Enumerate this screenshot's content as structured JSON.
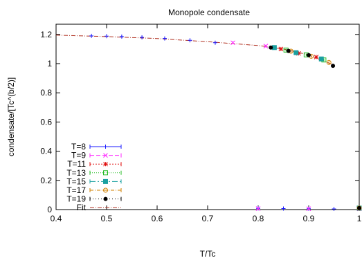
{
  "chart_data": {
    "type": "scatter",
    "title": "Monopole condensate",
    "xlabel": "T/Tc",
    "ylabel": "condensate/[Tc^(b/2)]",
    "xlim": [
      0.4,
      1.0
    ],
    "ylim": [
      0,
      1.27
    ],
    "x_ticks": [
      "0.4",
      "0.5",
      "0.6",
      "0.7",
      "0.8",
      "0.9",
      "1"
    ],
    "y_ticks": [
      "0",
      "0.2",
      "0.4",
      "0.6",
      "0.8",
      "1",
      "1.2"
    ],
    "x_tick_values": [
      0.4,
      0.5,
      0.6,
      0.7,
      0.8,
      0.9,
      1.0
    ],
    "y_tick_values": [
      0,
      0.2,
      0.4,
      0.6,
      0.8,
      1.0,
      1.2
    ],
    "grid": false,
    "legend_position": "bottom-left",
    "series": [
      {
        "name": "T=8",
        "color": "#1a1aff",
        "marker": "plus",
        "dash": "solid",
        "points": [
          [
            0.47,
            1.19
          ],
          [
            0.5,
            1.188
          ],
          [
            0.53,
            1.185
          ],
          [
            0.57,
            1.18
          ],
          [
            0.615,
            1.172
          ],
          [
            0.665,
            1.16
          ],
          [
            0.715,
            1.143
          ],
          [
            0.8,
            0.008
          ],
          [
            0.85,
            0.007
          ],
          [
            0.9,
            0.006
          ],
          [
            0.95,
            0.005
          ],
          [
            1.0,
            0.005
          ]
        ]
      },
      {
        "name": "T=9",
        "color": "#ff22ff",
        "marker": "cross",
        "dash": "6,3",
        "points": [
          [
            0.75,
            1.143
          ],
          [
            0.815,
            1.12
          ],
          [
            0.8,
            0.007
          ],
          [
            0.9,
            0.006
          ],
          [
            1.0,
            0.005
          ]
        ]
      },
      {
        "name": "T=11",
        "color": "#e01010",
        "marker": "star",
        "dash": "2,2",
        "points": [
          [
            0.845,
            1.1
          ],
          [
            0.88,
            1.07
          ],
          [
            0.915,
            1.045
          ],
          [
            1.0,
            0.007
          ]
        ]
      },
      {
        "name": "T=13",
        "color": "#22bb22",
        "marker": "open-square",
        "dash": "1,2",
        "points": [
          [
            0.855,
            1.093
          ],
          [
            0.895,
            1.06
          ],
          [
            0.93,
            1.025
          ],
          [
            1.0,
            0.01
          ]
        ]
      },
      {
        "name": "T=15",
        "color": "#1aa0a0",
        "marker": "filled-square",
        "dash": "8,3,2,3",
        "points": [
          [
            0.832,
            1.11
          ],
          [
            0.875,
            1.075
          ],
          [
            0.925,
            1.032
          ],
          [
            1.0,
            0.01
          ]
        ]
      },
      {
        "name": "T=17",
        "color": "#d08000",
        "marker": "open-circle",
        "dash": "5,2,1,2",
        "points": [
          [
            0.865,
            1.085
          ],
          [
            0.905,
            1.05
          ],
          [
            0.94,
            1.008
          ],
          [
            1.0,
            0.01
          ]
        ]
      },
      {
        "name": "T=19",
        "color": "#000000",
        "marker": "filled-circle",
        "dash": "1,3",
        "points": [
          [
            0.825,
            1.11
          ],
          [
            0.86,
            1.087
          ],
          [
            0.9,
            1.058
          ],
          [
            0.948,
            0.985
          ],
          [
            1.0,
            0.01
          ]
        ]
      }
    ],
    "fit": {
      "name": "Fit",
      "color": "#b03020",
      "dash": "6,2,1,2",
      "points": [
        [
          0.4,
          1.195
        ],
        [
          0.5,
          1.185
        ],
        [
          0.6,
          1.172
        ],
        [
          0.7,
          1.15
        ],
        [
          0.8,
          1.124
        ],
        [
          0.85,
          1.1
        ],
        [
          0.9,
          1.06
        ],
        [
          0.95,
          0.99
        ]
      ]
    }
  }
}
